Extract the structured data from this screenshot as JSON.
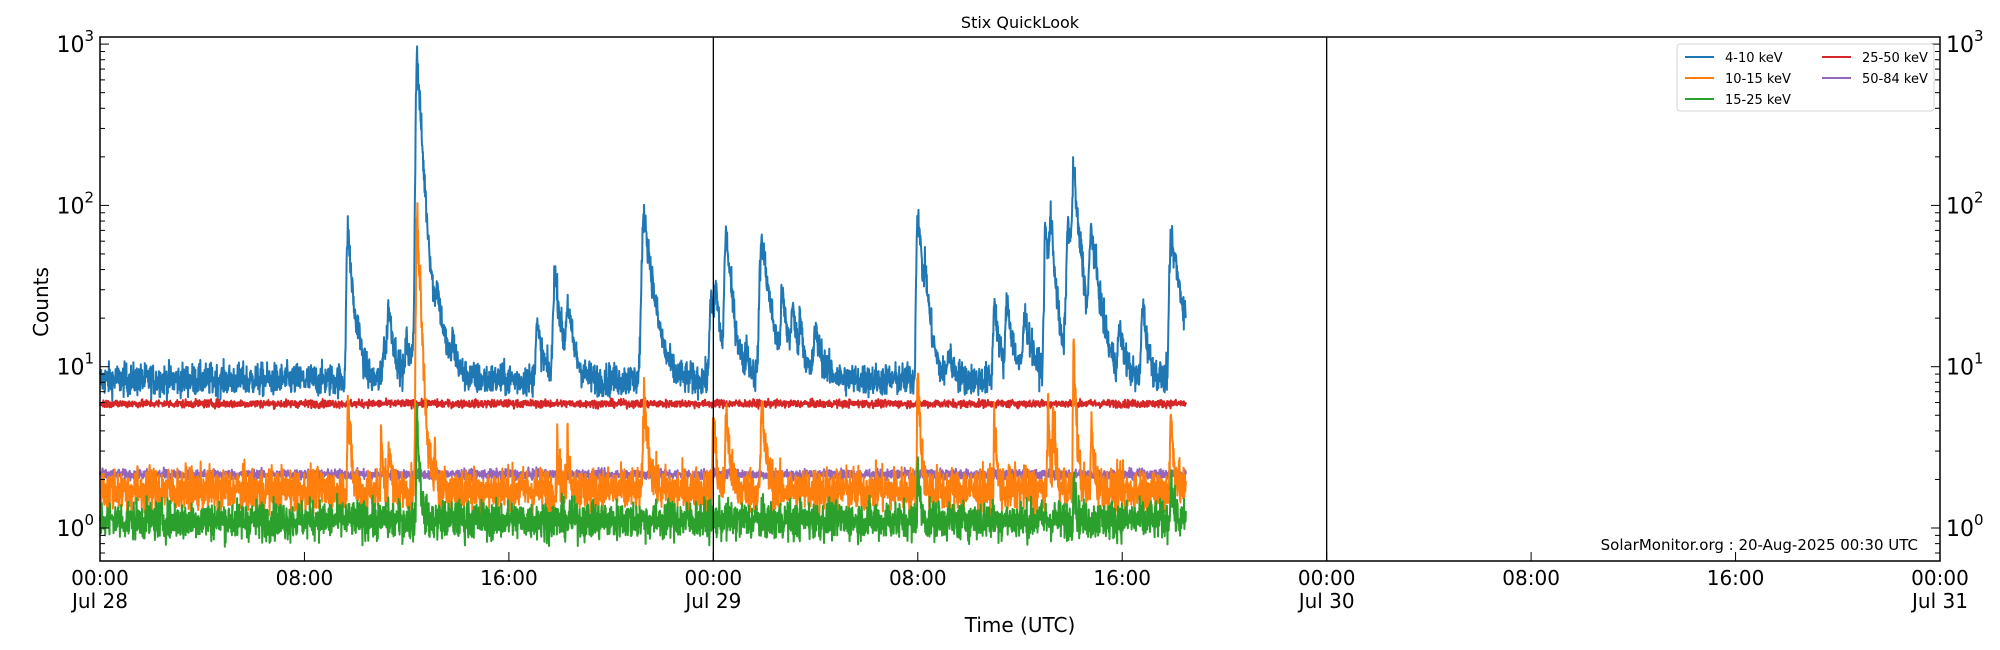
{
  "chart_data": {
    "type": "line",
    "title": "Stix QuickLook",
    "xlabel": "Time (UTC)",
    "ylabel": "Counts",
    "yscale": "log",
    "ylim": [
      0.6,
      1100
    ],
    "xlim_hours": [
      0,
      72
    ],
    "y_ticks": [
      {
        "label_base": "10",
        "label_exp": "0",
        "value": 1
      },
      {
        "label_base": "10",
        "label_exp": "1",
        "value": 10
      },
      {
        "label_base": "10",
        "label_exp": "2",
        "value": 100
      },
      {
        "label_base": "10",
        "label_exp": "3",
        "value": 1000
      }
    ],
    "x_ticks": [
      {
        "hour": 0,
        "time": "00:00",
        "date": "Jul 28"
      },
      {
        "hour": 8,
        "time": "08:00",
        "date": ""
      },
      {
        "hour": 16,
        "time": "16:00",
        "date": ""
      },
      {
        "hour": 24,
        "time": "00:00",
        "date": "Jul 29"
      },
      {
        "hour": 32,
        "time": "08:00",
        "date": ""
      },
      {
        "hour": 40,
        "time": "16:00",
        "date": ""
      },
      {
        "hour": 48,
        "time": "00:00",
        "date": "Jul 30"
      },
      {
        "hour": 56,
        "time": "08:00",
        "date": ""
      },
      {
        "hour": 64,
        "time": "16:00",
        "date": ""
      },
      {
        "hour": 72,
        "time": "00:00",
        "date": "Jul 31"
      }
    ],
    "day_boundaries_hours": [
      24,
      48
    ],
    "data_end_hour": 42.5,
    "grid": false,
    "legend": {
      "position": "upper right",
      "ncol": 2
    },
    "annotation": "SolarMonitor.org : 20-Aug-2025 00:30 UTC",
    "series": [
      {
        "name": "4-10 keV",
        "color": "#1f77b4",
        "baseline": 8.3,
        "noise": 0.05,
        "peaks": [
          {
            "hour": 9.7,
            "value": 72,
            "width": 0.12
          },
          {
            "hour": 10.1,
            "value": 13,
            "width": 0.1
          },
          {
            "hour": 11.1,
            "value": 14,
            "width": 0.1
          },
          {
            "hour": 11.3,
            "value": 22,
            "width": 0.15
          },
          {
            "hour": 12.0,
            "value": 14,
            "width": 0.12
          },
          {
            "hour": 12.4,
            "value": 800,
            "width": 0.1
          },
          {
            "hour": 12.45,
            "value": 85,
            "width": 0.25
          },
          {
            "hour": 13.2,
            "value": 20,
            "width": 0.15
          },
          {
            "hour": 13.8,
            "value": 13,
            "width": 0.1
          },
          {
            "hour": 17.1,
            "value": 18,
            "width": 0.15
          },
          {
            "hour": 17.8,
            "value": 40,
            "width": 0.15
          },
          {
            "hour": 18.3,
            "value": 22,
            "width": 0.15
          },
          {
            "hour": 21.2,
            "value": 14,
            "width": 0.15
          },
          {
            "hour": 21.3,
            "value": 85,
            "width": 0.2
          },
          {
            "hour": 23.9,
            "value": 28,
            "width": 0.12
          },
          {
            "hour": 24.1,
            "value": 26,
            "width": 0.12
          },
          {
            "hour": 24.5,
            "value": 65,
            "width": 0.15
          },
          {
            "hour": 25.3,
            "value": 12,
            "width": 0.1
          },
          {
            "hour": 25.9,
            "value": 62,
            "width": 0.2
          },
          {
            "hour": 26.7,
            "value": 25,
            "width": 0.15
          },
          {
            "hour": 27.1,
            "value": 20,
            "width": 0.15
          },
          {
            "hour": 27.4,
            "value": 17,
            "width": 0.1
          },
          {
            "hour": 28.0,
            "value": 16,
            "width": 0.2
          },
          {
            "hour": 32.0,
            "value": 98,
            "width": 0.12
          },
          {
            "hour": 32.3,
            "value": 25,
            "width": 0.15
          },
          {
            "hour": 33.2,
            "value": 12,
            "width": 0.15
          },
          {
            "hour": 35.0,
            "value": 26,
            "width": 0.12
          },
          {
            "hour": 35.5,
            "value": 25,
            "width": 0.15
          },
          {
            "hour": 36.2,
            "value": 20,
            "width": 0.2
          },
          {
            "hour": 37.0,
            "value": 72,
            "width": 0.12
          },
          {
            "hour": 37.2,
            "value": 70,
            "width": 0.12
          },
          {
            "hour": 37.9,
            "value": 75,
            "width": 0.2
          },
          {
            "hour": 38.1,
            "value": 138,
            "width": 0.12
          },
          {
            "hour": 38.4,
            "value": 22,
            "width": 0.12
          },
          {
            "hour": 38.8,
            "value": 65,
            "width": 0.2
          },
          {
            "hour": 39.9,
            "value": 16,
            "width": 0.15
          },
          {
            "hour": 40.8,
            "value": 25,
            "width": 0.12
          },
          {
            "hour": 41.9,
            "value": 55,
            "width": 0.12
          },
          {
            "hour": 42.1,
            "value": 30,
            "width": 0.4
          }
        ]
      },
      {
        "name": "10-15 keV",
        "color": "#ff7f0e",
        "baseline": 1.72,
        "noise": 0.07,
        "peaks": [
          {
            "hour": 9.7,
            "value": 6.5,
            "width": 0.06
          },
          {
            "hour": 11.0,
            "value": 3.5,
            "width": 0.05
          },
          {
            "hour": 11.3,
            "value": 3.8,
            "width": 0.05
          },
          {
            "hour": 12.4,
            "value": 93,
            "width": 0.08
          },
          {
            "hour": 13.1,
            "value": 2.7,
            "width": 0.05
          },
          {
            "hour": 17.9,
            "value": 3.3,
            "width": 0.06
          },
          {
            "hour": 18.3,
            "value": 3.6,
            "width": 0.06
          },
          {
            "hour": 21.3,
            "value": 6.5,
            "width": 0.1
          },
          {
            "hour": 24.0,
            "value": 5.5,
            "width": 0.06
          },
          {
            "hour": 24.5,
            "value": 5.5,
            "width": 0.08
          },
          {
            "hour": 25.9,
            "value": 5.5,
            "width": 0.1
          },
          {
            "hour": 32.0,
            "value": 10,
            "width": 0.06
          },
          {
            "hour": 35.0,
            "value": 5,
            "width": 0.05
          },
          {
            "hour": 37.1,
            "value": 6,
            "width": 0.05
          },
          {
            "hour": 37.3,
            "value": 5.5,
            "width": 0.05
          },
          {
            "hour": 38.1,
            "value": 13,
            "width": 0.06
          },
          {
            "hour": 38.8,
            "value": 4.5,
            "width": 0.06
          },
          {
            "hour": 41.9,
            "value": 4.8,
            "width": 0.08
          }
        ]
      },
      {
        "name": "15-25 keV",
        "color": "#2ca02c",
        "baseline": 1.12,
        "noise": 0.06,
        "peaks": [
          {
            "hour": 12.4,
            "value": 5.5,
            "width": 0.06
          },
          {
            "hour": 32.0,
            "value": 2.5,
            "width": 0.05
          },
          {
            "hour": 38.1,
            "value": 2.2,
            "width": 0.05
          },
          {
            "hour": 41.9,
            "value": 2.3,
            "width": 0.05
          }
        ]
      },
      {
        "name": "25-50 keV",
        "color": "#d62728",
        "baseline": 5.9,
        "noise": 0.012,
        "peaks": []
      },
      {
        "name": "50-84 keV",
        "color": "#9467bd",
        "baseline": 2.15,
        "noise": 0.015,
        "peaks": []
      }
    ]
  }
}
